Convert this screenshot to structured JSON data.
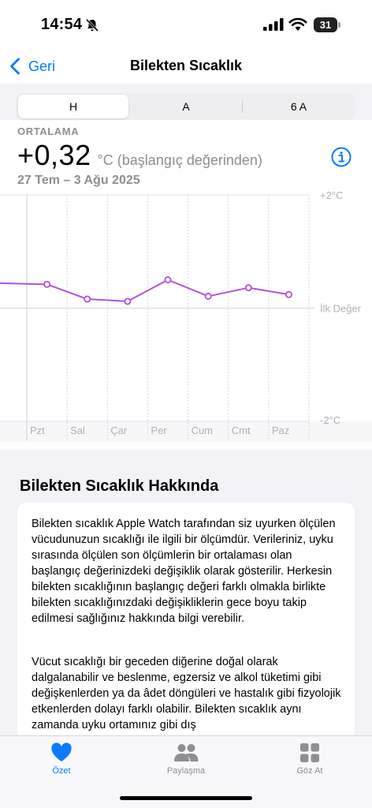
{
  "status_bar": {
    "time": "14:54",
    "battery": "31"
  },
  "nav": {
    "back_label": "Geri",
    "title": "Bilekten Sıcaklık"
  },
  "segments": [
    {
      "label": "H",
      "active": true
    },
    {
      "label": "A",
      "active": false
    },
    {
      "label": "6 A",
      "active": false
    }
  ],
  "summary": {
    "label": "ORTALAMA",
    "value": "+0,32",
    "unit": "°C (başlangıç değerinden)",
    "date_range": "27 Tem – 3 Ağu 2025"
  },
  "chart_data": {
    "type": "line",
    "categories": [
      "Pzt",
      "Sal",
      "Çar",
      "Per",
      "Cum",
      "Cmt",
      "Paz"
    ],
    "tick_labels": {
      "top": "+2°C",
      "middle": "İlk Değer",
      "bottom": "-2°C"
    },
    "ylim": [
      -2,
      2
    ],
    "series": [
      {
        "values": [
          0.42,
          0.16,
          0.12,
          0.5,
          0.21,
          0.36,
          0.24
        ]
      }
    ],
    "leading_value": 0.44,
    "line_color": "#af52de",
    "grid": true
  },
  "about": {
    "title": "Bilekten Sıcaklık Hakkında",
    "paragraph1": "Bilekten sıcaklık Apple Watch tarafından siz uyurken ölçülen vücudunuzun sıcaklığı ile ilgili bir ölçümdür. Verileriniz, uyku sırasında ölçülen son ölçümlerin bir ortalaması olan başlangıç değerinizdeki değişiklik olarak gösterilir. Herkesin bilekten sıcaklığının başlangıç değeri farklı olmakla birlikte bilekten sıcaklığınızdaki değişikliklerin gece boyu takip edilmesi sağlığınız hakkında bilgi verebilir.",
    "paragraph2": "Vücut sıcaklığı bir geceden diğerine doğal olarak dalgalanabilir ve beslenme, egzersiz ve alkol tüketimi gibi değişkenlerden ya da âdet döngüleri ve hastalık gibi fizyolojik etkenlerden dolayı farklı olabilir. Bilekten sıcaklık aynı zamanda uyku ortamınız gibi dış"
  },
  "tabbar": {
    "items": [
      {
        "label": "Özet",
        "icon": "heart-icon",
        "active": true
      },
      {
        "label": "Paylaşma",
        "icon": "people-icon",
        "active": false
      },
      {
        "label": "Göz At",
        "icon": "grid-icon",
        "active": false
      }
    ]
  },
  "colors": {
    "accent": "#0a7aff",
    "chart_line": "#af52de"
  }
}
